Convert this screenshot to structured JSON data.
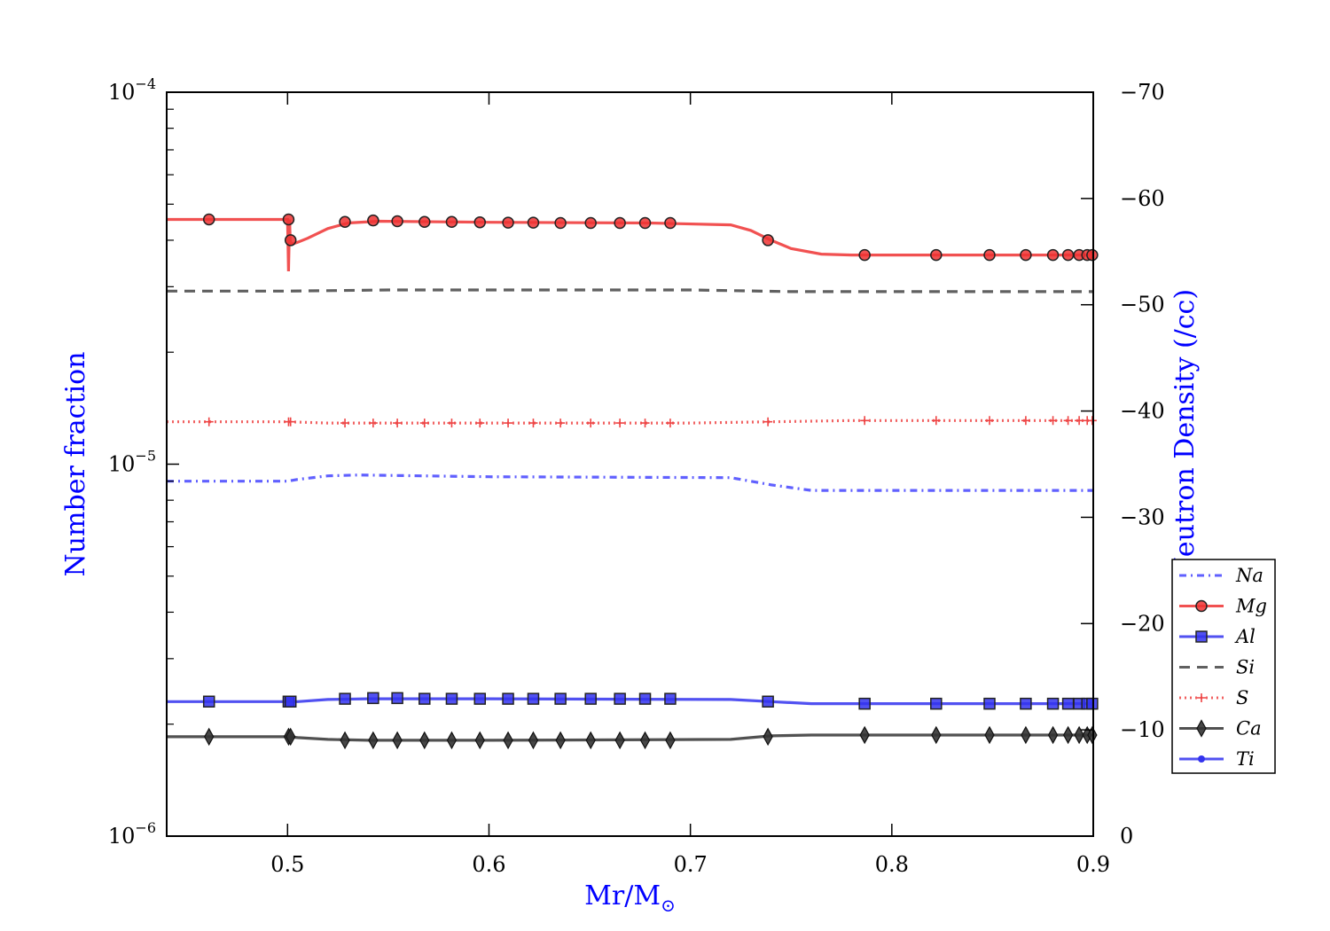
{
  "chart_data": {
    "type": "line",
    "xlabel": "Mr/M",
    "xlabel_symbol": "⊙",
    "ylabel_left": "Number fraction",
    "ylabel_right": "Log Neutron Density (/cc)",
    "xlim": [
      0.44,
      0.9
    ],
    "ylim_left": [
      1e-06,
      0.0001
    ],
    "yscale_left": "log",
    "ylim_right": [
      0,
      -70
    ],
    "grid": false,
    "legend_position": "right",
    "x_ticks": [
      {
        "value": 0.5,
        "label": "0.5"
      },
      {
        "value": 0.6,
        "label": "0.6"
      },
      {
        "value": 0.7,
        "label": "0.7"
      },
      {
        "value": 0.8,
        "label": "0.8"
      },
      {
        "value": 0.9,
        "label": "0.9"
      }
    ],
    "y_left_ticks": [
      {
        "value": 1e-06,
        "base": "10",
        "exp": "−6"
      },
      {
        "value": 1e-05,
        "base": "10",
        "exp": "−5"
      },
      {
        "value": 0.0001,
        "base": "10",
        "exp": "−4"
      }
    ],
    "y_right_ticks": [
      {
        "value": 0,
        "label": "0"
      },
      {
        "value": -10,
        "label": "−10"
      },
      {
        "value": -20,
        "label": "−20"
      },
      {
        "value": -30,
        "label": "−30"
      },
      {
        "value": -40,
        "label": "−40"
      },
      {
        "value": -50,
        "label": "−50"
      },
      {
        "value": -60,
        "label": "−60"
      },
      {
        "value": -70,
        "label": "−70"
      }
    ],
    "marker_x": [
      0.461,
      0.5005,
      0.5015,
      0.5285,
      0.5425,
      0.5545,
      0.568,
      0.5815,
      0.5955,
      0.6095,
      0.622,
      0.6355,
      0.6505,
      0.665,
      0.6775,
      0.69,
      0.7385,
      0.7865,
      0.822,
      0.8485,
      0.8665,
      0.88,
      0.8875,
      0.893,
      0.897,
      0.8995
    ],
    "series": [
      {
        "name": "Na",
        "color": "#4444ff",
        "dash": "8,5,2,5",
        "marker": "none",
        "x": [
          0.44,
          0.5,
          0.505,
          0.52,
          0.535,
          0.6,
          0.72,
          0.74,
          0.76,
          0.9
        ],
        "y": [
          9e-06,
          9e-06,
          9.1e-06,
          9.3e-06,
          9.35e-06,
          9.25e-06,
          9.2e-06,
          8.8e-06,
          8.5e-06,
          8.5e-06
        ]
      },
      {
        "name": "Mg",
        "color": "#ee3333",
        "dash": "",
        "marker": "circle",
        "x": [
          0.44,
          0.5,
          0.5005,
          0.501,
          0.5013,
          0.502,
          0.505,
          0.51,
          0.52,
          0.53,
          0.545,
          0.6,
          0.68,
          0.72,
          0.73,
          0.74,
          0.75,
          0.765,
          0.78,
          0.9
        ],
        "y": [
          4.55e-05,
          4.55e-05,
          3.3e-05,
          4.55e-05,
          4e-05,
          3.9e-05,
          3.95e-05,
          4.05e-05,
          4.3e-05,
          4.45e-05,
          4.5e-05,
          4.47e-05,
          4.45e-05,
          4.4e-05,
          4.25e-05,
          4e-05,
          3.8e-05,
          3.67e-05,
          3.65e-05,
          3.65e-05
        ],
        "markers": [
          4.55e-05,
          4.55e-05,
          4e-05,
          4.48e-05,
          4.52e-05,
          4.5e-05,
          4.48e-05,
          4.48e-05,
          4.47e-05,
          4.46e-05,
          4.46e-05,
          4.45e-05,
          4.45e-05,
          4.45e-05,
          4.45e-05,
          4.45e-05,
          4e-05,
          3.65e-05,
          3.65e-05,
          3.65e-05,
          3.65e-05,
          3.65e-05,
          3.65e-05,
          3.65e-05,
          3.65e-05,
          3.65e-05
        ]
      },
      {
        "name": "Al",
        "color": "#3333ee",
        "dash": "",
        "marker": "square",
        "x": [
          0.44,
          0.5,
          0.505,
          0.52,
          0.54,
          0.6,
          0.72,
          0.74,
          0.76,
          0.9
        ],
        "y": [
          2.3e-06,
          2.3e-06,
          2.3e-06,
          2.33e-06,
          2.34e-06,
          2.34e-06,
          2.33e-06,
          2.3e-06,
          2.27e-06,
          2.27e-06
        ],
        "markers": [
          2.3e-06,
          2.3e-06,
          2.3e-06,
          2.34e-06,
          2.35e-06,
          2.35e-06,
          2.34e-06,
          2.34e-06,
          2.34e-06,
          2.34e-06,
          2.34e-06,
          2.34e-06,
          2.34e-06,
          2.34e-06,
          2.34e-06,
          2.34e-06,
          2.3e-06,
          2.27e-06,
          2.27e-06,
          2.27e-06,
          2.27e-06,
          2.27e-06,
          2.27e-06,
          2.27e-06,
          2.27e-06,
          2.27e-06
        ]
      },
      {
        "name": "Si",
        "color": "#444444",
        "dash": "12,8",
        "marker": "none",
        "x": [
          0.44,
          0.5,
          0.55,
          0.7,
          0.75,
          0.9
        ],
        "y": [
          2.92e-05,
          2.92e-05,
          2.94e-05,
          2.94e-05,
          2.91e-05,
          2.91e-05
        ]
      },
      {
        "name": "S",
        "color": "#ee4444",
        "dash": "2,4",
        "marker": "plus",
        "x": [
          0.44,
          0.5,
          0.52,
          0.7,
          0.74,
          0.78,
          0.9
        ],
        "y": [
          1.3e-05,
          1.3e-05,
          1.29e-05,
          1.29e-05,
          1.3e-05,
          1.31e-05,
          1.31e-05
        ],
        "markers": [
          1.3e-05,
          1.3e-05,
          1.3e-05,
          1.29e-05,
          1.29e-05,
          1.29e-05,
          1.29e-05,
          1.29e-05,
          1.29e-05,
          1.29e-05,
          1.29e-05,
          1.29e-05,
          1.29e-05,
          1.29e-05,
          1.29e-05,
          1.29e-05,
          1.3e-05,
          1.31e-05,
          1.31e-05,
          1.31e-05,
          1.31e-05,
          1.31e-05,
          1.31e-05,
          1.31e-05,
          1.31e-05,
          1.31e-05
        ]
      },
      {
        "name": "Ca",
        "color": "#333333",
        "dash": "",
        "marker": "diamond",
        "x": [
          0.44,
          0.5,
          0.505,
          0.52,
          0.54,
          0.6,
          0.72,
          0.74,
          0.76,
          0.9
        ],
        "y": [
          1.85e-06,
          1.85e-06,
          1.84e-06,
          1.82e-06,
          1.81e-06,
          1.81e-06,
          1.82e-06,
          1.86e-06,
          1.87e-06,
          1.87e-06
        ],
        "markers": [
          1.85e-06,
          1.85e-06,
          1.85e-06,
          1.81e-06,
          1.81e-06,
          1.81e-06,
          1.81e-06,
          1.81e-06,
          1.81e-06,
          1.81e-06,
          1.81e-06,
          1.81e-06,
          1.81e-06,
          1.81e-06,
          1.81e-06,
          1.81e-06,
          1.85e-06,
          1.87e-06,
          1.87e-06,
          1.87e-06,
          1.87e-06,
          1.87e-06,
          1.87e-06,
          1.87e-06,
          1.87e-06,
          1.87e-06
        ]
      },
      {
        "name": "Ti",
        "color": "#3333ee",
        "dash": "",
        "marker": "dot",
        "x": [],
        "y": []
      }
    ]
  }
}
